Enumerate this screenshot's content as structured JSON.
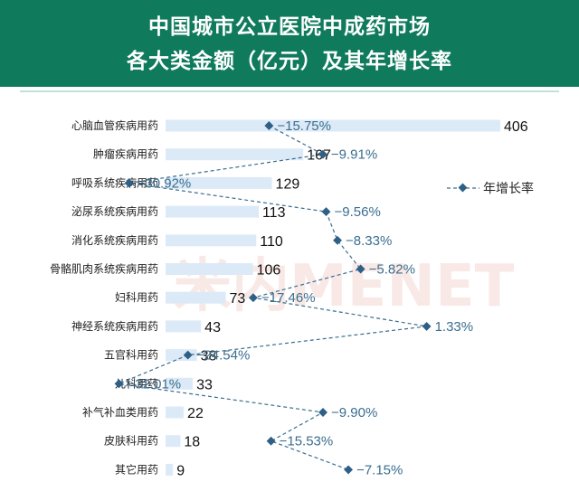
{
  "header": {
    "title_line1": "中国城市公立医院中成药市场",
    "title_line2": "各大类金额（亿元）及其年增长率"
  },
  "watermark_text": "米内MENET",
  "colors": {
    "header_bg": "#0f7a5c",
    "bar": "#dceaf8",
    "line": "#3a6e8f",
    "marker": "#2e5f86"
  },
  "chart_data": {
    "type": "bar",
    "orientation": "horizontal",
    "categories": [
      "心脑血管疾病用药",
      "肿瘤疾病用药",
      "呼吸系统疾病用药",
      "泌尿系统疾病用药",
      "消化系统疾病用药",
      "骨骼肌肉系统疾病用药",
      "妇科用药",
      "神经系统疾病用药",
      "五官科用药",
      "儿科用药",
      "补气补血类用药",
      "皮肤科用药",
      "其它用药"
    ],
    "values": [
      406,
      167,
      129,
      113,
      110,
      106,
      73,
      43,
      38,
      33,
      22,
      18,
      9
    ],
    "value_labels": [
      "406",
      "167",
      "129",
      "113",
      "110",
      "106",
      "73",
      "43",
      "38",
      "33",
      "22",
      "18",
      "9"
    ],
    "line_series": {
      "name": "年增长率",
      "values": [
        -15.75,
        -9.91,
        -30.92,
        -9.56,
        -8.33,
        -5.82,
        -17.46,
        1.33,
        -24.54,
        -32.01,
        -9.9,
        -15.53,
        -7.15
      ],
      "labels": [
        "−15.75%",
        "−9.91%",
        "−30.92%",
        "−9.56%",
        "−8.33%",
        "−5.82%",
        "−17.46%",
        "1.33%",
        "−24.54%",
        "−32.01%",
        "−9.90%",
        "−15.53%",
        "−7.15%"
      ]
    },
    "legend": {
      "label": "年增长率",
      "placement": "right"
    }
  }
}
